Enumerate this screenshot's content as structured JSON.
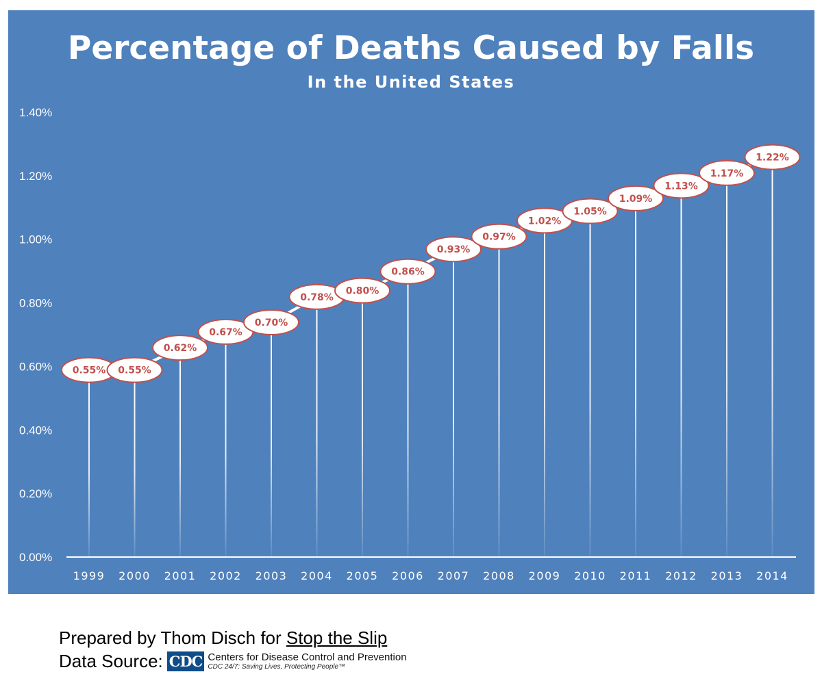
{
  "chart_data": {
    "type": "bar",
    "title": "Percentage of Deaths Caused by Falls",
    "subtitle": "In the United States",
    "categories": [
      "1999",
      "2000",
      "2001",
      "2002",
      "2003",
      "2004",
      "2005",
      "2006",
      "2007",
      "2008",
      "2009",
      "2010",
      "2011",
      "2012",
      "2013",
      "2014"
    ],
    "values": [
      0.55,
      0.55,
      0.62,
      0.67,
      0.7,
      0.78,
      0.8,
      0.86,
      0.93,
      0.97,
      1.02,
      1.05,
      1.09,
      1.13,
      1.17,
      1.22
    ],
    "data_labels": [
      "0.55%",
      "0.55%",
      "0.62%",
      "0.67%",
      "0.70%",
      "0.78%",
      "0.80%",
      "0.86%",
      "0.93%",
      "0.97%",
      "1.02%",
      "1.05%",
      "1.09%",
      "1.13%",
      "1.17%",
      "1.22%"
    ],
    "y_ticks": [
      "0.00%",
      "0.20%",
      "0.40%",
      "0.60%",
      "0.80%",
      "1.00%",
      "1.20%",
      "1.40%"
    ],
    "ylim": [
      0,
      1.4
    ],
    "grid": false,
    "legend": "none",
    "colors": {
      "background": "#4f81bd",
      "bar": "#ffffff",
      "label_fill": "#ffffff",
      "label_border": "#c0504d",
      "label_text": "#c0504d"
    }
  },
  "footer": {
    "prepared_prefix": "Prepared by Thom Disch for ",
    "prepared_link": "Stop the Slip",
    "source_prefix": "Data Source:",
    "cdc_logo_text": "CDC",
    "cdc_name": "Centers for Disease Control and Prevention",
    "cdc_tagline": "CDC 24/7: Saving Lives, Protecting People™"
  }
}
